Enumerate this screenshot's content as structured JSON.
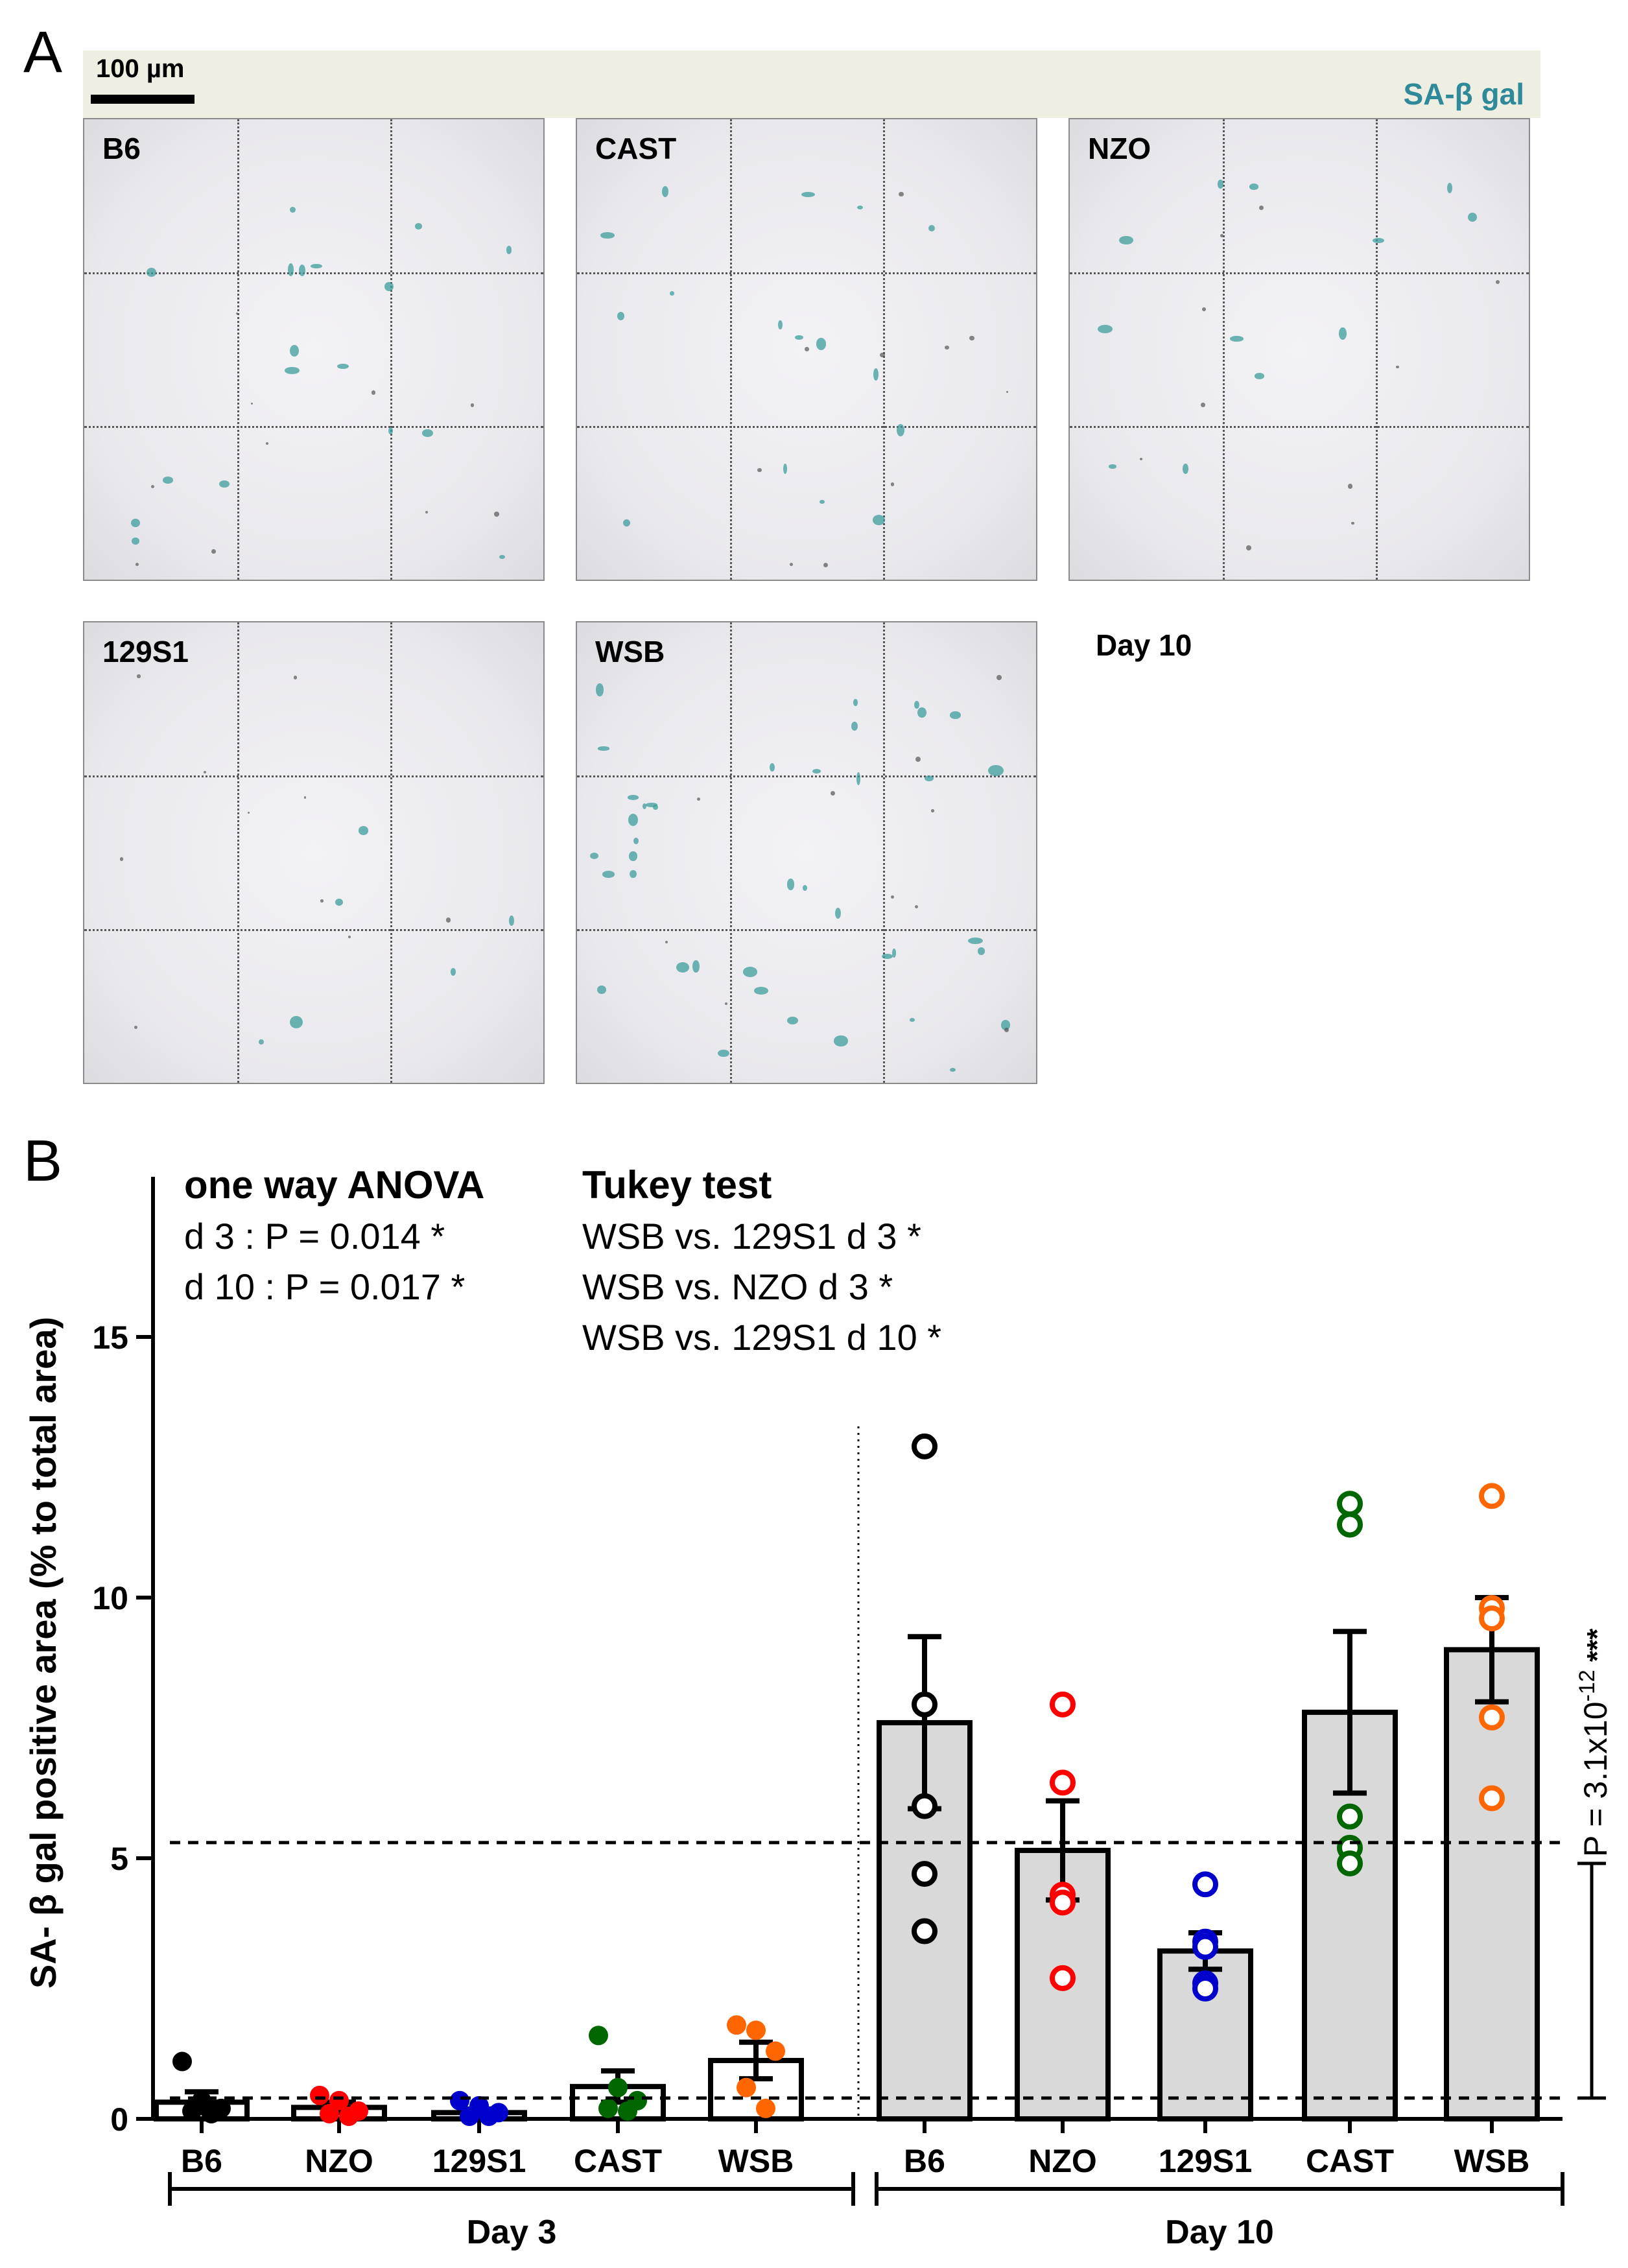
{
  "panel_a": {
    "letter": "A",
    "scale_bar_label": "100 µm",
    "stain_label": "SA-β gal",
    "stain_color": "#2e8a98",
    "images": [
      {
        "label": "B6",
        "density": 18
      },
      {
        "label": "CAST",
        "density": 16
      },
      {
        "label": "NZO",
        "density": 12
      },
      {
        "label": "129S1",
        "density": 6
      },
      {
        "label": "WSB",
        "density": 40
      }
    ],
    "timepoint_label": "Day 10"
  },
  "panel_b": {
    "letter": "B",
    "anova_title": "one way ANOVA",
    "anova_lines": [
      "d 3 : P = 0.014 *",
      "d 10 : P = 0.017 *"
    ],
    "tukey_title": "Tukey test",
    "tukey_lines": [
      "WSB vs. 129S1 d 3 *",
      "WSB vs. NZO d 3 *",
      "WSB vs. 129S1 d 10 *"
    ],
    "group_labels": [
      "Day 3",
      "Day 10"
    ],
    "comparison_label": "P = 3.1x10",
    "comparison_exponent": "-12",
    "comparison_stars": "***"
  },
  "chart_data": {
    "type": "bar",
    "title": "",
    "xlabel": "",
    "ylabel": "SA- β gal positive area (% to total area)",
    "ylim": [
      0,
      18
    ],
    "yticks": [
      0,
      5,
      10,
      15
    ],
    "grid": false,
    "categories": [
      "B6",
      "NZO",
      "129S1",
      "CAST",
      "WSB",
      "B6",
      "NZO",
      "129S1",
      "CAST",
      "WSB"
    ],
    "groups": [
      {
        "name": "Day 3",
        "indices": [
          0,
          1,
          2,
          3,
          4
        ]
      },
      {
        "name": "Day 10",
        "indices": [
          5,
          6,
          7,
          8,
          9
        ]
      }
    ],
    "means": [
      0.32,
      0.22,
      0.12,
      0.62,
      1.12,
      7.6,
      5.15,
      3.22,
      7.8,
      9.0
    ],
    "sem": [
      0.2,
      0.1,
      0.07,
      0.3,
      0.35,
      1.65,
      0.95,
      0.35,
      1.55,
      1.0
    ],
    "colors": [
      "#000000",
      "#ff0000",
      "#0000cc",
      "#006600",
      "#ff6600",
      "#000000",
      "#ff0000",
      "#0000cc",
      "#006600",
      "#ff6600"
    ],
    "points": [
      [
        1.1,
        0.35,
        0.2,
        0.15,
        0.1
      ],
      [
        0.45,
        0.35,
        0.15,
        0.1,
        0.05
      ],
      [
        0.35,
        0.25,
        0.12,
        0.05,
        0.05
      ],
      [
        1.6,
        0.6,
        0.35,
        0.2,
        0.15
      ],
      [
        1.8,
        1.7,
        1.3,
        0.6,
        0.2
      ],
      [
        12.9,
        7.95,
        6.0,
        4.7,
        3.6
      ],
      [
        7.95,
        6.45,
        4.3,
        4.15,
        2.7
      ],
      [
        4.5,
        3.4,
        3.3,
        2.6,
        2.5
      ],
      [
        11.8,
        11.4,
        5.8,
        5.2,
        4.9
      ],
      [
        11.95,
        9.8,
        9.6,
        7.7,
        6.15
      ]
    ],
    "reference_lines": [
      0.4,
      5.3
    ],
    "comparison": {
      "from": 0.4,
      "to": 4.9
    }
  }
}
